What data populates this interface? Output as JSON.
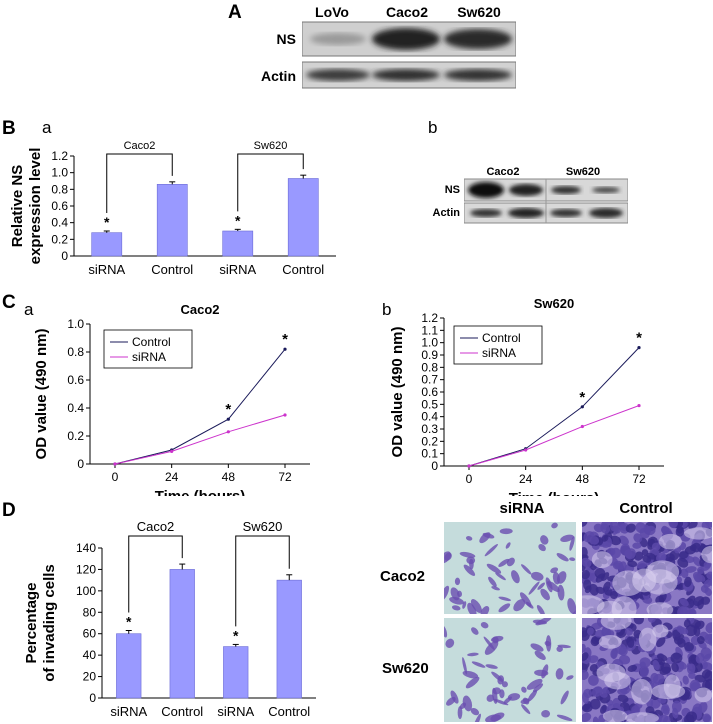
{
  "panel_a": {
    "letter": "A",
    "lanes": [
      "LoVo",
      "Caco2",
      "Sw620"
    ],
    "rows": [
      "NS",
      "Actin"
    ]
  },
  "panel_b": {
    "letter": "B",
    "sub_a": "a",
    "sub_b": "b",
    "blot_groups": [
      "Caco2",
      "Sw620"
    ],
    "blot_rows": [
      "NS",
      "Actin"
    ]
  },
  "panel_c": {
    "letter": "C",
    "sub_a": "a",
    "sub_b": "b"
  },
  "panel_d": {
    "letter": "D",
    "col_headers": [
      "siRNA",
      "Control"
    ],
    "row_headers": [
      "Caco2",
      "Sw620"
    ]
  },
  "colors": {
    "bar_fill": "#9999ff",
    "control_line": "#1a1a5a",
    "sirna_line": "#cc33cc",
    "stain_bg": "#c5dcdc",
    "stain_cell": "#6a4fb0"
  },
  "chart_data": [
    {
      "id": "b-a",
      "type": "bar",
      "ylabel_lines": [
        "Relative NS",
        "expression level"
      ],
      "categories": [
        "siRNA",
        "Control",
        "siRNA",
        "Control"
      ],
      "values": [
        0.28,
        0.86,
        0.3,
        0.93
      ],
      "errors": [
        0.02,
        0.03,
        0.02,
        0.04
      ],
      "significance": [
        "*",
        "",
        "*",
        ""
      ],
      "yticks": [
        "0",
        "0.2",
        "0.4",
        "0.6",
        "0.8",
        "1.0",
        "1.2"
      ],
      "ylim": [
        0,
        1.2
      ],
      "brackets": [
        {
          "label": "Caco2",
          "from": 0,
          "to": 1
        },
        {
          "label": "Sw620",
          "from": 2,
          "to": 3
        }
      ]
    },
    {
      "id": "c-a",
      "type": "line",
      "title": "Caco2",
      "xlabel": "Time (hours)",
      "ylabel": "OD value (490 nm)",
      "x": [
        0,
        24,
        48,
        72
      ],
      "xticks": [
        "0",
        "24",
        "48",
        "72"
      ],
      "yticks": [
        "0",
        "0.2",
        "0.4",
        "0.6",
        "0.8",
        "1.0"
      ],
      "ylim": [
        0,
        1.0
      ],
      "series": [
        {
          "name": "Control",
          "values": [
            0.0,
            0.1,
            0.32,
            0.82
          ],
          "significance": [
            "",
            "",
            "*",
            "*"
          ]
        },
        {
          "name": "siRNA",
          "values": [
            0.0,
            0.09,
            0.23,
            0.35
          ]
        }
      ]
    },
    {
      "id": "c-b",
      "type": "line",
      "title": "Sw620",
      "xlabel": "Time (hours)",
      "ylabel": "OD value (490 nm)",
      "x": [
        0,
        24,
        48,
        72
      ],
      "xticks": [
        "0",
        "24",
        "48",
        "72"
      ],
      "yticks": [
        "0",
        "0.1",
        "0.2",
        "0.3",
        "0.4",
        "0.5",
        "0.6",
        "0.7",
        "0.8",
        "0.9",
        "1.0",
        "1.1",
        "1.2"
      ],
      "ylim": [
        0,
        1.2
      ],
      "series": [
        {
          "name": "Control",
          "values": [
            0.0,
            0.14,
            0.48,
            0.96
          ],
          "significance": [
            "",
            "",
            "*",
            "*"
          ]
        },
        {
          "name": "siRNA",
          "values": [
            0.0,
            0.13,
            0.32,
            0.49
          ]
        }
      ]
    },
    {
      "id": "d",
      "type": "bar",
      "ylabel_lines": [
        "Percentage",
        "of invading cells"
      ],
      "categories": [
        "siRNA",
        "Control",
        "siRNA",
        "Control"
      ],
      "values": [
        60,
        120,
        48,
        110
      ],
      "errors": [
        3,
        5,
        2,
        5
      ],
      "significance": [
        "*",
        "",
        "*",
        ""
      ],
      "yticks": [
        "0",
        "20",
        "40",
        "60",
        "80",
        "100",
        "120",
        "140"
      ],
      "ylim": [
        0,
        140
      ],
      "brackets": [
        {
          "label": "Caco2",
          "from": 0,
          "to": 1
        },
        {
          "label": "Sw620",
          "from": 2,
          "to": 3
        }
      ]
    }
  ]
}
